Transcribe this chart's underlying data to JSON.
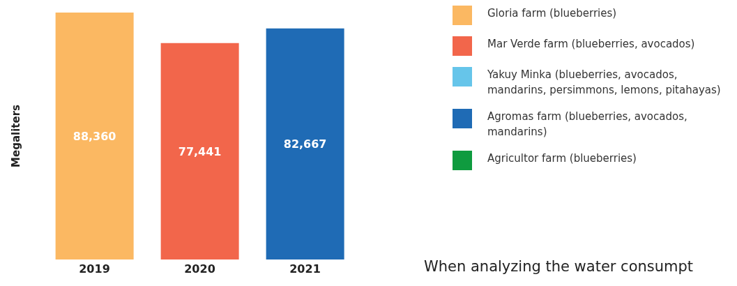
{
  "chart_data": {
    "type": "bar",
    "categories": [
      "2019",
      "2020",
      "2021"
    ],
    "ylabel": "Megaliters",
    "stacked": true,
    "legend": "right",
    "series": [
      {
        "name": "Gloria farm (blueberries)",
        "color": "#fbb862",
        "values": [
          88360,
          null,
          null
        ],
        "value_labels": [
          "88,360",
          null,
          null
        ]
      },
      {
        "name": "Mar Verde farm (blueberries, avocados)",
        "color": "#f2664b",
        "values": [
          null,
          77441,
          null
        ],
        "value_labels": [
          null,
          "77,441",
          null
        ]
      },
      {
        "name": "Yakuy Minka (blueberries, avocados, mandarins, persimmons, lemons, pitahayas)",
        "color": "#66c5ea",
        "values": [
          null,
          null,
          null
        ]
      },
      {
        "name": "Agromas farm (blueberries, avocados, mandarins)",
        "color": "#1f6bb5",
        "values": [
          null,
          null,
          82667
        ],
        "value_labels": [
          null,
          null,
          "82,667"
        ]
      },
      {
        "name": "Agricultor farm (blueberries)",
        "color": "#0f9b3f",
        "values": [
          null,
          null,
          null
        ]
      }
    ],
    "annotations": [
      "When analyzing the water consumpt"
    ]
  }
}
